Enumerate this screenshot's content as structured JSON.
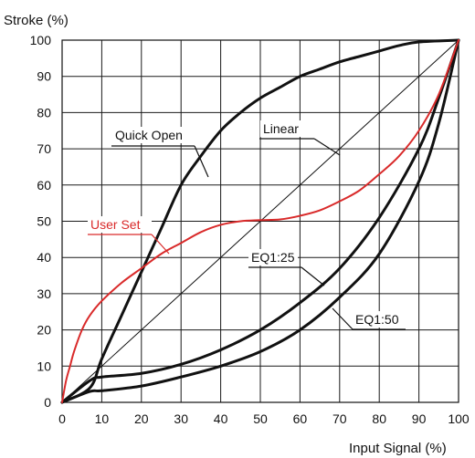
{
  "chart_data": {
    "type": "line",
    "ylabel": "Stroke (%)",
    "xlabel": "Input Signal (%)",
    "xlim": [
      0,
      100
    ],
    "ylim": [
      0,
      100
    ],
    "x_ticks": [
      0,
      10,
      20,
      30,
      40,
      50,
      60,
      70,
      80,
      90,
      100
    ],
    "y_ticks": [
      0,
      10,
      20,
      30,
      40,
      50,
      60,
      70,
      80,
      90,
      100
    ],
    "grid": true,
    "series": [
      {
        "name": "Linear",
        "color": "#111111",
        "points": [
          [
            0,
            0
          ],
          [
            100,
            100
          ]
        ]
      },
      {
        "name": "Quick Open",
        "color": "#111111",
        "points": [
          [
            0,
            0
          ],
          [
            7,
            4
          ],
          [
            10,
            12
          ],
          [
            15,
            24
          ],
          [
            20,
            36
          ],
          [
            25,
            48
          ],
          [
            30,
            60
          ],
          [
            35,
            68
          ],
          [
            40,
            75
          ],
          [
            45,
            80
          ],
          [
            50,
            84
          ],
          [
            55,
            87
          ],
          [
            60,
            90
          ],
          [
            65,
            92
          ],
          [
            70,
            94
          ],
          [
            75,
            95.5
          ],
          [
            80,
            97
          ],
          [
            85,
            98.5
          ],
          [
            90,
            99.5
          ],
          [
            100,
            100
          ]
        ]
      },
      {
        "name": "EQ1:25",
        "color": "#111111",
        "points": [
          [
            0,
            0
          ],
          [
            7,
            6
          ],
          [
            10,
            7
          ],
          [
            20,
            8
          ],
          [
            30,
            10.5
          ],
          [
            40,
            14.5
          ],
          [
            50,
            20
          ],
          [
            60,
            27.5
          ],
          [
            70,
            37
          ],
          [
            80,
            51
          ],
          [
            90,
            70
          ],
          [
            95,
            84
          ],
          [
            100,
            100
          ]
        ]
      },
      {
        "name": "EQ1:50",
        "color": "#111111",
        "points": [
          [
            0,
            0
          ],
          [
            7,
            3
          ],
          [
            10,
            3.2
          ],
          [
            20,
            4.5
          ],
          [
            30,
            7
          ],
          [
            40,
            10
          ],
          [
            50,
            14
          ],
          [
            60,
            20
          ],
          [
            70,
            29
          ],
          [
            80,
            41
          ],
          [
            90,
            61
          ],
          [
            95,
            77
          ],
          [
            100,
            100
          ]
        ]
      },
      {
        "name": "User Set",
        "color": "#d92a2a",
        "points": [
          [
            0,
            0
          ],
          [
            1,
            6
          ],
          [
            2,
            10
          ],
          [
            3,
            14
          ],
          [
            5,
            20
          ],
          [
            7,
            24
          ],
          [
            10,
            28
          ],
          [
            15,
            33
          ],
          [
            20,
            37
          ],
          [
            25,
            41
          ],
          [
            30,
            44
          ],
          [
            35,
            47
          ],
          [
            40,
            49
          ],
          [
            45,
            50
          ],
          [
            50,
            50.3
          ],
          [
            55,
            50.5
          ],
          [
            60,
            51.5
          ],
          [
            65,
            53
          ],
          [
            70,
            55.5
          ],
          [
            75,
            58.5
          ],
          [
            80,
            63
          ],
          [
            85,
            68
          ],
          [
            90,
            75
          ],
          [
            95,
            85
          ],
          [
            100,
            100
          ]
        ]
      }
    ],
    "annotations": [
      {
        "text": "Quick Open",
        "color": "#111111"
      },
      {
        "text": "Linear",
        "color": "#111111"
      },
      {
        "text": "User Set",
        "color": "#d92a2a"
      },
      {
        "text": "EQ1:25",
        "color": "#111111"
      },
      {
        "text": "EQ1:50",
        "color": "#111111"
      }
    ]
  }
}
